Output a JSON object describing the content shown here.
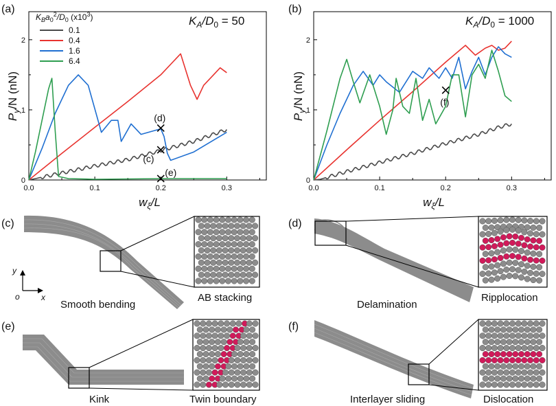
{
  "figure": {
    "panel_labels": [
      "(a)",
      "(b)",
      "(c)",
      "(d)",
      "(e)",
      "(f)"
    ],
    "legend_title": "K_B a0^2/D0 (x10^3)",
    "legend_title_parts": {
      "k": "K",
      "b": "B",
      "a": "a",
      "zero": "0",
      "two": "2",
      "slash": "/D",
      "d0": "0",
      "tail": " (x10",
      "exp": "3",
      "close": ")"
    },
    "ylabel": {
      "p": "P",
      "y": "y",
      "rest": "/N (nN)"
    },
    "xlabel": {
      "w": "w",
      "xi": "ξ",
      "rest": "/L"
    },
    "ka_a": {
      "k": "K",
      "a": "A",
      "slash": "/D",
      "zero": "0",
      "eq": " = 50"
    },
    "ka_b": {
      "k": "K",
      "a": "A",
      "slash": "/D",
      "zero": "0",
      "eq": " = 1000"
    },
    "markers_a": [
      "(d)",
      "(c)",
      "(e)"
    ],
    "markers_b": [
      "(f)"
    ],
    "sim_labels": {
      "c": [
        "Smooth bending",
        "AB stacking"
      ],
      "d": [
        "Delamination",
        "Ripplocation"
      ],
      "e": [
        "Kink",
        "Twin boundary"
      ],
      "f": [
        "Interlayer sliding",
        "Dislocation"
      ]
    },
    "axis_glyphs": {
      "y": "y",
      "o": "o",
      "x": "x"
    },
    "colors": {
      "black": "#4a4a4a",
      "red": "#e8332f",
      "blue": "#1f6fd1",
      "green": "#2e9e50",
      "gray": "#8c8c8c",
      "pink": "#d11a5a"
    }
  },
  "chart_data": [
    {
      "type": "line",
      "panel": "(a)",
      "title": "K_A/D0 = 50",
      "xlabel": "w_ξ/L",
      "ylabel": "P_y/N (nN)",
      "xlim": [
        0,
        0.36
      ],
      "ylim": [
        0,
        2.4
      ],
      "xticks": [
        0.0,
        0.1,
        0.2,
        0.3
      ],
      "xtick_labels": [
        "0.0",
        "0.1",
        "0.2",
        "0.3"
      ],
      "yticks": [
        0,
        1,
        2
      ],
      "ytick_labels": [
        "0",
        "1",
        "2"
      ],
      "legend": [
        "0.1",
        "0.4",
        "1.6",
        "6.4"
      ],
      "series": [
        {
          "name": "0.1",
          "color": "#4a4a4a",
          "wavy": true,
          "x": [
            0,
            0.01,
            0.05,
            0.1,
            0.15,
            0.2,
            0.25,
            0.3
          ],
          "y": [
            0,
            0.02,
            0.1,
            0.2,
            0.29,
            0.42,
            0.55,
            0.72
          ]
        },
        {
          "name": "0.4",
          "color": "#e8332f",
          "wavy": false,
          "x": [
            0,
            0.05,
            0.1,
            0.15,
            0.2,
            0.23,
            0.245,
            0.255,
            0.265,
            0.28,
            0.29,
            0.3
          ],
          "y": [
            0,
            0.38,
            0.75,
            1.12,
            1.5,
            1.8,
            1.35,
            1.15,
            1.35,
            1.5,
            1.6,
            1.53
          ]
        },
        {
          "name": "1.6",
          "color": "#1f6fd1",
          "wavy": false,
          "x": [
            0,
            0.02,
            0.04,
            0.06,
            0.075,
            0.09,
            0.11,
            0.125,
            0.135,
            0.14,
            0.155,
            0.17,
            0.2,
            0.205,
            0.21,
            0.215,
            0.25,
            0.3
          ],
          "y": [
            0,
            0.45,
            0.95,
            1.35,
            1.5,
            1.35,
            0.68,
            0.85,
            0.85,
            0.55,
            0.8,
            0.65,
            0.73,
            0.62,
            0.38,
            0.28,
            0.4,
            0.68
          ]
        },
        {
          "name": "6.4",
          "color": "#2e9e50",
          "wavy": false,
          "x": [
            0,
            0.01,
            0.02,
            0.03,
            0.035,
            0.04,
            0.045,
            0.06,
            0.1,
            0.2,
            0.3
          ],
          "y": [
            0,
            0.4,
            0.85,
            1.3,
            1.45,
            0.7,
            0.05,
            0.02,
            0.01,
            0.02,
            0.02
          ]
        }
      ],
      "markers": [
        {
          "label": "(d)",
          "x": 0.2,
          "y": 0.74
        },
        {
          "label": "(c)",
          "x": 0.2,
          "y": 0.43
        },
        {
          "label": "(e)",
          "x": 0.2,
          "y": 0.02
        }
      ]
    },
    {
      "type": "line",
      "panel": "(b)",
      "title": "K_A/D0 = 1000",
      "xlabel": "w_ξ/L",
      "ylabel": "P_y/N (nN)",
      "xlim": [
        0,
        0.36
      ],
      "ylim": [
        0,
        2.4
      ],
      "xticks": [
        0.0,
        0.1,
        0.2,
        0.3
      ],
      "xtick_labels": [
        "0.0",
        "0.1",
        "0.2",
        "0.3"
      ],
      "yticks": [
        0,
        1,
        2
      ],
      "ytick_labels": [
        "0",
        "1",
        "2"
      ],
      "series": [
        {
          "name": "0.1",
          "color": "#4a4a4a",
          "wavy": true,
          "x": [
            0,
            0.01,
            0.05,
            0.1,
            0.15,
            0.2,
            0.25,
            0.28,
            0.3
          ],
          "y": [
            0,
            0.01,
            0.12,
            0.25,
            0.38,
            0.52,
            0.65,
            0.75,
            0.8
          ]
        },
        {
          "name": "0.4",
          "color": "#e8332f",
          "wavy": false,
          "x": [
            0,
            0.05,
            0.1,
            0.15,
            0.2,
            0.23,
            0.245,
            0.26,
            0.27,
            0.28,
            0.29,
            0.3
          ],
          "y": [
            0,
            0.43,
            0.85,
            1.26,
            1.68,
            1.92,
            1.78,
            1.88,
            1.92,
            1.85,
            1.88,
            1.98
          ]
        },
        {
          "name": "1.6",
          "color": "#1f6fd1",
          "wavy": false,
          "x": [
            0,
            0.02,
            0.04,
            0.06,
            0.075,
            0.09,
            0.1,
            0.11,
            0.13,
            0.15,
            0.165,
            0.175,
            0.19,
            0.2,
            0.21,
            0.22,
            0.23,
            0.24,
            0.25,
            0.26,
            0.27,
            0.28,
            0.29,
            0.3
          ],
          "y": [
            0,
            0.5,
            0.95,
            1.35,
            1.55,
            1.35,
            1.5,
            1.4,
            1.25,
            1.55,
            1.45,
            1.6,
            1.45,
            1.6,
            1.45,
            1.75,
            1.3,
            1.55,
            1.75,
            1.5,
            1.75,
            1.9,
            1.8,
            1.75
          ]
        },
        {
          "name": "6.4",
          "color": "#2e9e50",
          "wavy": false,
          "x": [
            0,
            0.02,
            0.04,
            0.05,
            0.06,
            0.07,
            0.085,
            0.1,
            0.11,
            0.12,
            0.125,
            0.135,
            0.145,
            0.155,
            0.165,
            0.175,
            0.185,
            0.2,
            0.21,
            0.22,
            0.23,
            0.24,
            0.25,
            0.26,
            0.27,
            0.28,
            0.29,
            0.3
          ],
          "y": [
            0,
            0.7,
            1.45,
            1.72,
            1.4,
            1.1,
            1.5,
            1.05,
            0.65,
            1.0,
            1.45,
            1.05,
            0.95,
            1.45,
            0.85,
            1.15,
            0.8,
            1.05,
            1.5,
            1.5,
            0.9,
            1.5,
            1.65,
            1.45,
            1.85,
            1.55,
            1.2,
            1.12
          ]
        }
      ],
      "markers": [
        {
          "label": "(f)",
          "x": 0.2,
          "y": 1.28
        }
      ]
    }
  ]
}
